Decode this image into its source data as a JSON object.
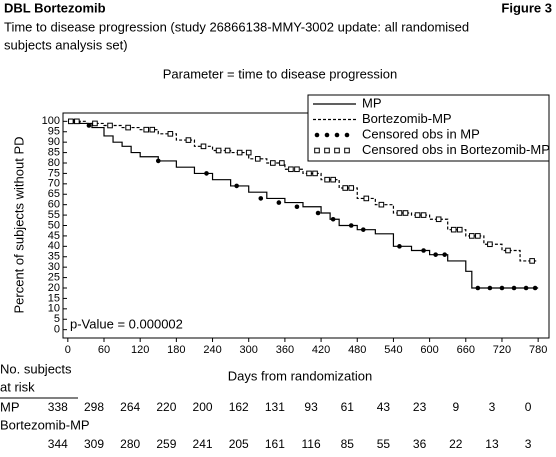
{
  "chart_data": {
    "type": "line",
    "step": true,
    "header_left": "DBL Bortezomib",
    "header_right": "Figure 3",
    "title": [
      "Time to disease progression (study 26866138-MMY-3002 update: all randomised",
      "subjects analysis set)"
    ],
    "subtitle": "Parameter = time to disease progression",
    "xlabel": "Days from randomization",
    "ylabel": "Percent of subjects without PD",
    "annotation": "p-Value = 0.000002",
    "xlim": [
      -8,
      798
    ],
    "ylim": [
      -4,
      104
    ],
    "xticks": [
      0,
      60,
      120,
      180,
      240,
      300,
      360,
      420,
      480,
      540,
      600,
      660,
      720,
      780
    ],
    "yticks": [
      0,
      5,
      10,
      15,
      20,
      25,
      30,
      35,
      40,
      45,
      50,
      55,
      60,
      65,
      70,
      75,
      80,
      85,
      90,
      95,
      100
    ],
    "series": [
      {
        "name": "MP",
        "color": "#000000",
        "line": "solid",
        "x": [
          0,
          20,
          40,
          60,
          75,
          90,
          105,
          120,
          150,
          180,
          210,
          240,
          270,
          300,
          330,
          360,
          390,
          420,
          435,
          450,
          480,
          510,
          540,
          570,
          600,
          630,
          660,
          670,
          780
        ],
        "values": [
          100,
          99,
          97,
          93,
          90,
          88,
          85,
          83,
          81,
          78,
          75,
          72,
          69,
          66,
          63,
          61,
          59,
          56,
          53,
          50,
          48,
          46,
          40,
          38,
          36,
          33,
          28,
          20,
          20
        ]
      },
      {
        "name": "Bortezomib-MP",
        "color": "#000000",
        "line": "dashed",
        "x": [
          0,
          30,
          60,
          90,
          120,
          150,
          180,
          210,
          240,
          270,
          300,
          330,
          360,
          390,
          420,
          450,
          480,
          510,
          540,
          570,
          600,
          630,
          660,
          690,
          720,
          750,
          780
        ],
        "values": [
          100,
          99,
          98,
          97,
          96,
          94,
          91,
          88,
          86,
          85,
          82,
          80,
          77,
          75,
          72,
          68,
          63,
          60,
          56,
          55,
          53,
          48,
          45,
          41,
          38,
          33,
          33
        ]
      },
      {
        "name": "Censored obs in MP",
        "color": "#000000",
        "marker": "filled-circle",
        "x": [
          10,
          35,
          150,
          230,
          280,
          320,
          350,
          380,
          415,
          440,
          470,
          490,
          550,
          590,
          610,
          625,
          680,
          700,
          720,
          740,
          760,
          775
        ],
        "values": [
          100,
          98,
          81,
          75,
          69,
          63,
          61,
          59,
          56,
          53,
          50,
          48,
          40,
          38,
          36,
          36,
          20,
          20,
          20,
          20,
          20,
          20
        ]
      },
      {
        "name": "Censored obs in Bortezomib-MP",
        "color": "#000000",
        "marker": "open-square",
        "x": [
          5,
          15,
          45,
          70,
          100,
          130,
          140,
          170,
          200,
          225,
          250,
          265,
          285,
          300,
          315,
          340,
          355,
          370,
          380,
          400,
          410,
          430,
          440,
          460,
          470,
          495,
          520,
          550,
          560,
          580,
          590,
          615,
          640,
          650,
          670,
          680,
          700,
          730,
          770
        ],
        "values": [
          100,
          100,
          99,
          98,
          97,
          96,
          96,
          94,
          91,
          88,
          86,
          86,
          85,
          85,
          82,
          80,
          80,
          77,
          77,
          75,
          75,
          72,
          72,
          68,
          68,
          63,
          60,
          56,
          56,
          55,
          55,
          53,
          48,
          48,
          45,
          45,
          41,
          38,
          33
        ]
      }
    ],
    "risk_table": {
      "title": [
        "No. subjects",
        "at risk"
      ],
      "rows": [
        {
          "name": "MP",
          "values": [
            338,
            298,
            264,
            220,
            200,
            162,
            131,
            93,
            61,
            43,
            23,
            9,
            3,
            0
          ]
        },
        {
          "name": "Bortezomib-MP",
          "values": [
            344,
            309,
            280,
            259,
            241,
            205,
            161,
            116,
            85,
            55,
            36,
            22,
            13,
            3
          ]
        }
      ]
    }
  }
}
